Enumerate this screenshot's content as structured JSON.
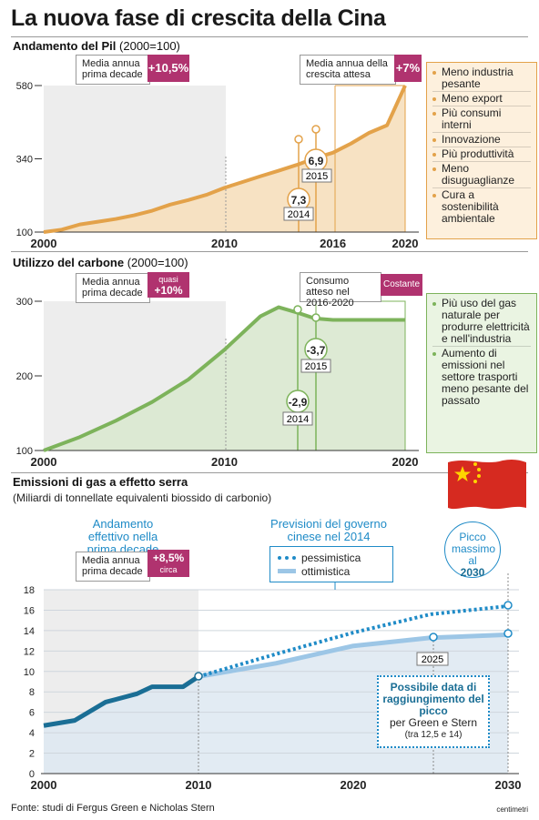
{
  "title": "La nuova fase di crescita della Cina",
  "footer": "Fonte: studi di Fergus Green e Nicholas Stern",
  "credit": "centimetri",
  "pil": {
    "title": "Andamento del Pil",
    "title_suffix": "(2000=100)",
    "avg_label": "Media annua prima decade",
    "avg_value": "+10,5%",
    "expected_label": "Media annua della crescita attesa",
    "expected_value": "+7%",
    "notes": [
      "Meno industria pesante",
      "Meno export",
      "Più consumi interni",
      "Innovazione",
      "Più produttività",
      "Meno disuguaglianze",
      "Cura a sostenibilità ambientale"
    ],
    "colors": {
      "line": "#e3a24a",
      "fill": "#f6dfbd",
      "highlight": "#ededed"
    }
  },
  "carbone": {
    "title": "Utilizzo del carbone",
    "title_suffix": "(2000=100)",
    "avg_label": "Media annua prima decade",
    "avg_value_top": "quasi",
    "avg_value": "+10%",
    "expected_label": "Consumo atteso nel 2016-2020",
    "expected_value": "Costante",
    "notes": [
      "Più uso del gas naturale per produrre elettricità e nell'industria",
      "Aumento di emissioni nel settore trasporti meno pesante del passato"
    ],
    "colors": {
      "line": "#7db35b",
      "fill": "#d9e8cf"
    }
  },
  "emissioni": {
    "title": "Emissioni di gas a effetto serra",
    "subtitle": "(Miliardi di tonnellate equivalenti biossido di carbonio)",
    "actual_label": "Andamento effettivo nella prima decade",
    "avg_label": "Media annua prima decade",
    "avg_value": "+8,5%",
    "avg_value_sub": "circa",
    "forecast_label": "Previsioni del governo cinese nel 2014",
    "legend_pess": "pessimistica",
    "legend_ott": "ottimistica",
    "peak_max_label": "Picco massimo al",
    "peak_max_year": "2030",
    "peak_year": "2025",
    "possible_title": "Possibile data di raggiungimento del picco",
    "possible_by": "per Green e Stern",
    "possible_range": "(tra 12,5 e 14)",
    "colors": {
      "actual": "#1a6e95",
      "pess": "#1f8bc7",
      "ott": "#9cc6e6",
      "fill": "#dde7f1"
    }
  },
  "chart_data": [
    {
      "type": "area",
      "title": "Andamento del Pil",
      "x": [
        2000,
        2001,
        2002,
        2003,
        2004,
        2005,
        2006,
        2007,
        2008,
        2009,
        2010,
        2011,
        2012,
        2013,
        2014,
        2015,
        2016,
        2017,
        2018,
        2019,
        2020
      ],
      "values": [
        100,
        108,
        125,
        134,
        143,
        155,
        170,
        190,
        205,
        222,
        245,
        264,
        283,
        301,
        320,
        342,
        360,
        390,
        425,
        450,
        580
      ],
      "yticks": [
        100,
        340,
        580
      ],
      "xticks": [
        2000,
        2010,
        2016,
        2020
      ],
      "ylim": [
        100,
        580
      ],
      "annotations": [
        {
          "x": 2014,
          "label": "2014",
          "value": "7,3"
        },
        {
          "x": 2015,
          "label": "2015",
          "value": "6,9"
        }
      ]
    },
    {
      "type": "area",
      "title": "Utilizzo del carbone",
      "x": [
        2000,
        2002,
        2004,
        2006,
        2008,
        2010,
        2012,
        2013,
        2014,
        2015,
        2016,
        2018,
        2020
      ],
      "values": [
        100,
        118,
        140,
        165,
        195,
        235,
        280,
        292,
        285,
        277,
        275,
        275,
        275
      ],
      "yticks": [
        100,
        200,
        300
      ],
      "xticks": [
        2000,
        2010,
        2020
      ],
      "ylim": [
        100,
        300
      ],
      "annotations": [
        {
          "x": 2014,
          "label": "2014",
          "value": "-2,9"
        },
        {
          "x": 2015,
          "label": "2015",
          "value": "-3,7"
        }
      ]
    },
    {
      "type": "line",
      "title": "Emissioni di gas a effetto serra",
      "ylabel": "Miliardi di tonnellate equivalenti biossido di carbonio",
      "xticks": [
        2000,
        2010,
        2020,
        2030
      ],
      "yticks": [
        0,
        2,
        4,
        6,
        8,
        10,
        12,
        14,
        16,
        18
      ],
      "ylim": [
        0,
        18
      ],
      "series": [
        {
          "name": "Andamento effettivo nella prima decade",
          "x": [
            2000,
            2002,
            2004,
            2006,
            2007,
            2008,
            2009,
            2010
          ],
          "values": [
            4.7,
            5.2,
            7.0,
            7.8,
            8.5,
            8.5,
            8.5,
            9.5
          ]
        },
        {
          "name": "pessimistica",
          "x": [
            2010,
            2015,
            2020,
            2025,
            2030
          ],
          "values": [
            9.5,
            11.7,
            13.8,
            15.6,
            16.4
          ]
        },
        {
          "name": "ottimistica",
          "x": [
            2010,
            2015,
            2020,
            2025,
            2030
          ],
          "values": [
            9.5,
            10.8,
            12.5,
            13.3,
            13.6
          ]
        }
      ]
    }
  ]
}
